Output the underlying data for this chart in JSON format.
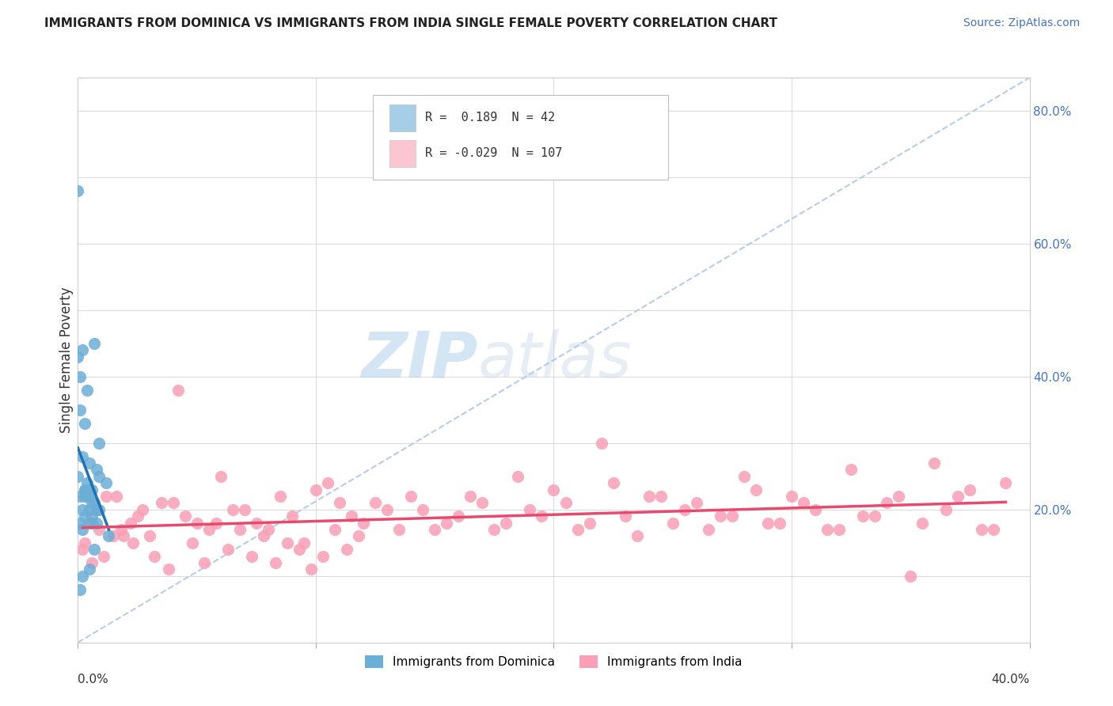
{
  "title": "IMMIGRANTS FROM DOMINICA VS IMMIGRANTS FROM INDIA SINGLE FEMALE POVERTY CORRELATION CHART",
  "source": "Source: ZipAtlas.com",
  "legend_blue_label": "Immigrants from Dominica",
  "legend_pink_label": "Immigrants from India",
  "r_blue": 0.189,
  "n_blue": 42,
  "r_pink": -0.029,
  "n_pink": 107,
  "xlim": [
    0.0,
    0.4
  ],
  "ylim": [
    0.0,
    0.85
  ],
  "blue_color": "#6baed6",
  "pink_color": "#fa9fb5",
  "blue_line_color": "#2171b5",
  "pink_line_color": "#e8496e",
  "diag_line_color": "#aec7e8",
  "background_color": "#ffffff",
  "ylabel": "Single Female Poverty",
  "blue_scatter_x": [
    0.005,
    0.012,
    0.0,
    0.003,
    0.001,
    0.008,
    0.006,
    0.004,
    0.002,
    0.009,
    0.007,
    0.001,
    0.003,
    0.005,
    0.008,
    0.0,
    0.002,
    0.004,
    0.006,
    0.001,
    0.003,
    0.007,
    0.005,
    0.002,
    0.009,
    0.004,
    0.006,
    0.001,
    0.003,
    0.008,
    0.0,
    0.005,
    0.002,
    0.007,
    0.004,
    0.001,
    0.006,
    0.003,
    0.009,
    0.005,
    0.013,
    0.002
  ],
  "blue_scatter_y": [
    0.23,
    0.24,
    0.25,
    0.22,
    0.18,
    0.2,
    0.19,
    0.24,
    0.28,
    0.3,
    0.21,
    0.35,
    0.33,
    0.27,
    0.26,
    0.43,
    0.44,
    0.38,
    0.23,
    0.4,
    0.23,
    0.45,
    0.22,
    0.17,
    0.2,
    0.23,
    0.21,
    0.22,
    0.19,
    0.18,
    0.68,
    0.2,
    0.1,
    0.14,
    0.22,
    0.08,
    0.18,
    0.23,
    0.25,
    0.11,
    0.16,
    0.2
  ],
  "pink_scatter_x": [
    0.005,
    0.003,
    0.008,
    0.012,
    0.018,
    0.025,
    0.03,
    0.04,
    0.05,
    0.06,
    0.07,
    0.08,
    0.09,
    0.1,
    0.11,
    0.12,
    0.13,
    0.14,
    0.15,
    0.16,
    0.17,
    0.18,
    0.19,
    0.2,
    0.21,
    0.22,
    0.23,
    0.24,
    0.25,
    0.26,
    0.27,
    0.28,
    0.29,
    0.3,
    0.31,
    0.32,
    0.33,
    0.34,
    0.35,
    0.36,
    0.37,
    0.38,
    0.39,
    0.015,
    0.022,
    0.035,
    0.045,
    0.055,
    0.065,
    0.075,
    0.085,
    0.095,
    0.105,
    0.115,
    0.125,
    0.135,
    0.145,
    0.155,
    0.165,
    0.175,
    0.185,
    0.195,
    0.205,
    0.215,
    0.225,
    0.235,
    0.245,
    0.255,
    0.265,
    0.275,
    0.285,
    0.295,
    0.305,
    0.315,
    0.325,
    0.335,
    0.345,
    0.355,
    0.365,
    0.375,
    0.385,
    0.002,
    0.006,
    0.009,
    0.011,
    0.016,
    0.019,
    0.023,
    0.027,
    0.032,
    0.038,
    0.042,
    0.048,
    0.053,
    0.058,
    0.063,
    0.068,
    0.073,
    0.078,
    0.083,
    0.088,
    0.093,
    0.098,
    0.103,
    0.108,
    0.113,
    0.118,
    0.123
  ],
  "pink_scatter_y": [
    0.18,
    0.15,
    0.2,
    0.22,
    0.17,
    0.19,
    0.16,
    0.21,
    0.18,
    0.25,
    0.2,
    0.17,
    0.19,
    0.23,
    0.21,
    0.18,
    0.2,
    0.22,
    0.17,
    0.19,
    0.21,
    0.18,
    0.2,
    0.23,
    0.17,
    0.3,
    0.19,
    0.22,
    0.18,
    0.21,
    0.19,
    0.25,
    0.18,
    0.22,
    0.2,
    0.17,
    0.19,
    0.21,
    0.1,
    0.27,
    0.22,
    0.17,
    0.24,
    0.16,
    0.18,
    0.21,
    0.19,
    0.17,
    0.2,
    0.18,
    0.22,
    0.15,
    0.24,
    0.19,
    0.21,
    0.17,
    0.2,
    0.18,
    0.22,
    0.17,
    0.25,
    0.19,
    0.21,
    0.18,
    0.24,
    0.16,
    0.22,
    0.2,
    0.17,
    0.19,
    0.23,
    0.18,
    0.21,
    0.17,
    0.26,
    0.19,
    0.22,
    0.18,
    0.2,
    0.23,
    0.17,
    0.14,
    0.12,
    0.17,
    0.13,
    0.22,
    0.16,
    0.15,
    0.2,
    0.13,
    0.11,
    0.38,
    0.15,
    0.12,
    0.18,
    0.14,
    0.17,
    0.13,
    0.16,
    0.12,
    0.15,
    0.14,
    0.11,
    0.13,
    0.17,
    0.14,
    0.16
  ]
}
